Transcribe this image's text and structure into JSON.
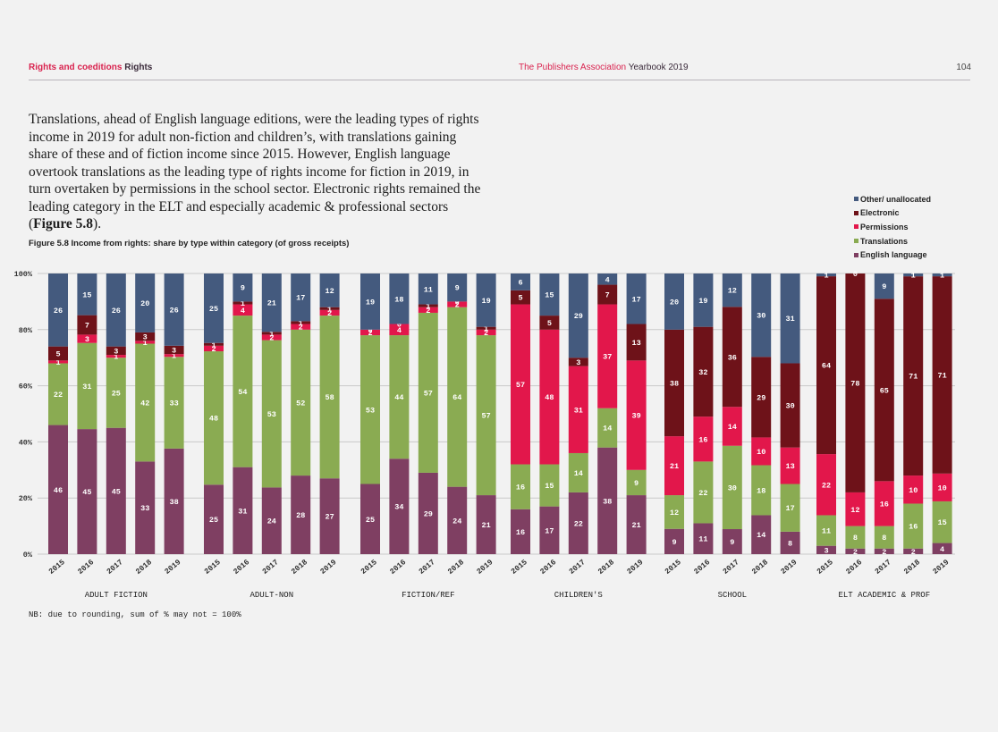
{
  "header": {
    "section_pink": "Rights and coeditions",
    "section_dark": "Rights",
    "publisher_pink": "The Publishers Association",
    "publisher_dark": "Yearbook 2019",
    "page_number": "104"
  },
  "body_text": {
    "paragraph": "Translations, ahead of English language editions, were the leading types of rights income in 2019 for adult non-fiction and children’s, with translations gaining share of these and of fiction income since 2015. However, English language overtook translations as the leading type of rights income for fiction in 2019, in turn overtaken by permissions in the school sector. Electronic rights remained the leading category in the ELT and especially academic & professional sectors (",
    "figure_ref": "Figure 5.8",
    "paragraph_end": ")."
  },
  "figure_title": "Figure 5.8 Income from rights: share by type within category (of gross receipts)",
  "note": "NB: due to rounding, sum of % may not = 100%",
  "colors": {
    "English language": "#7f3f62",
    "Translations": "#8aab52",
    "Permissions": "#e2174b",
    "Electronic": "#6e1219",
    "Other/ unallocated": "#445a7e"
  },
  "chart_data": {
    "type": "bar",
    "stacked": true,
    "title": "Figure 5.8 Income from rights: share by type within category (of gross receipts)",
    "xlabel": "",
    "ylabel": "",
    "ylim": [
      0,
      100
    ],
    "y_ticks": [
      "0%",
      "20%",
      "40%",
      "60%",
      "80%",
      "100%"
    ],
    "grid": true,
    "legend_position": "top-right",
    "legend": [
      "Other/ unallocated",
      "Electronic",
      "Permissions",
      "Translations",
      "English language"
    ],
    "series_order": [
      "English language",
      "Translations",
      "Permissions",
      "Electronic",
      "Other/ unallocated"
    ],
    "groups": [
      {
        "name": "ADULT FICTION",
        "bars": [
          {
            "year": "2015",
            "values": [
              46,
              22,
              1,
              5,
              26
            ]
          },
          {
            "year": "2016",
            "values": [
              45,
              31,
              3,
              7,
              15
            ]
          },
          {
            "year": "2017",
            "values": [
              45,
              25,
              1,
              3,
              26
            ]
          },
          {
            "year": "2018",
            "values": [
              33,
              42,
              1,
              3,
              20
            ]
          },
          {
            "year": "2019",
            "values": [
              38,
              33,
              1,
              3,
              26
            ]
          }
        ]
      },
      {
        "name": "ADULT-NON",
        "bars": [
          {
            "year": "2015",
            "values": [
              25,
              48,
              2,
              1,
              25
            ]
          },
          {
            "year": "2016",
            "values": [
              31,
              54,
              4,
              1,
              9
            ]
          },
          {
            "year": "2017",
            "values": [
              24,
              53,
              2,
              1,
              21
            ]
          },
          {
            "year": "2018",
            "values": [
              28,
              52,
              2,
              1,
              17
            ]
          },
          {
            "year": "2019",
            "values": [
              27,
              58,
              2,
              1,
              12
            ]
          }
        ]
      },
      {
        "name": "FICTION/REF",
        "bars": [
          {
            "year": "2015",
            "values": [
              25,
              53,
              2,
              0,
              19
            ]
          },
          {
            "year": "2016",
            "values": [
              34,
              44,
              4,
              0,
              18
            ]
          },
          {
            "year": "2017",
            "values": [
              29,
              57,
              2,
              1,
              11
            ]
          },
          {
            "year": "2018",
            "values": [
              24,
              64,
              2,
              0,
              9
            ]
          },
          {
            "year": "2019",
            "values": [
              21,
              57,
              2,
              1,
              19
            ]
          }
        ]
      },
      {
        "name": "CHILDREN'S",
        "bars": [
          {
            "year": "2015",
            "values": [
              16,
              16,
              57,
              5,
              6
            ]
          },
          {
            "year": "2016",
            "values": [
              17,
              15,
              48,
              5,
              15
            ]
          },
          {
            "year": "2017",
            "values": [
              22,
              14,
              31,
              3,
              29
            ]
          },
          {
            "year": "2018",
            "values": [
              38,
              14,
              37,
              7,
              4
            ]
          },
          {
            "year": "2019",
            "values": [
              21,
              9,
              39,
              13,
              17
            ]
          }
        ]
      },
      {
        "name": "SCHOOL",
        "bars": [
          {
            "year": "2015",
            "values": [
              9,
              12,
              21,
              38,
              20
            ]
          },
          {
            "year": "2016",
            "values": [
              11,
              22,
              16,
              32,
              19
            ]
          },
          {
            "year": "2017",
            "values": [
              9,
              30,
              14,
              36,
              12
            ]
          },
          {
            "year": "2018",
            "values": [
              14,
              18,
              10,
              29,
              30
            ]
          },
          {
            "year": "2019",
            "values": [
              8,
              17,
              13,
              30,
              31
            ]
          }
        ]
      },
      {
        "name": "ELT  ACADEMIC & PROF",
        "bars": [
          {
            "year": "2015",
            "values": [
              3,
              11,
              22,
              64,
              1
            ]
          },
          {
            "year": "2016",
            "values": [
              2,
              8,
              12,
              78,
              0
            ]
          },
          {
            "year": "2017",
            "values": [
              2,
              8,
              16,
              65,
              9
            ]
          },
          {
            "year": "2018",
            "values": [
              2,
              16,
              10,
              71,
              1
            ]
          },
          {
            "year": "2019",
            "values": [
              4,
              15,
              10,
              71,
              1
            ]
          }
        ]
      }
    ]
  }
}
